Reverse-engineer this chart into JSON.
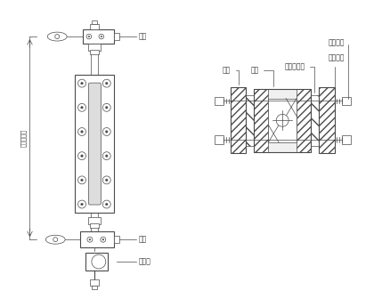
{
  "bg_color": "#ffffff",
  "line_color": "#4a4a4a",
  "label_color": "#333333",
  "label_left": "液位中心距",
  "label_qi": "汽阀",
  "label_shui": "水阀",
  "label_paiwu": "排污阀",
  "label_gaiban": "盖板",
  "label_zhuti": "主体",
  "label_boli": "液位计玻璃",
  "label_miyafeng": "密封压帮",
  "label_luoshuan": "双头螺栓"
}
